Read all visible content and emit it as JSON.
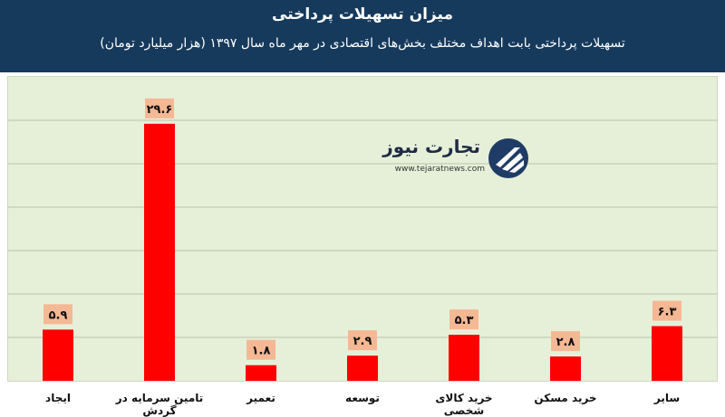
{
  "header": {
    "title": "میزان تسهیلات پرداختی",
    "subtitle": "تسهیلات پرداختی بابت اهداف مختلف بخش‌های اقتصادی در مهر ماه سال ۱۳۹۷ (هزار میلیارد تومان)"
  },
  "logo": {
    "name": "تجارت نیوز",
    "url": "www.tejaratnews.com",
    "icon": "tejaratnews-logo-icon"
  },
  "colors": {
    "header_bg": "#163a5c",
    "plot_bg": "#e6f0d8",
    "bar": "#ff0000",
    "label_bg": "#f5b894",
    "grid": "#b9c4ad"
  },
  "chart_data": {
    "type": "bar",
    "categories": [
      "ایجاد",
      "تامین سرمایه در گردش",
      "تعمیر",
      "توسعه",
      "خرید کالای شخصی",
      "خرید مسکن",
      "سایر"
    ],
    "values": [
      5.9,
      29.6,
      1.8,
      2.9,
      5.3,
      2.8,
      6.3
    ],
    "value_labels": [
      "۵.۹",
      "۲۹.۶",
      "۱.۸",
      "۲.۹",
      "۵.۳",
      "۲.۸",
      "۶.۳"
    ],
    "title": "میزان تسهیلات پرداختی",
    "subtitle": "تسهیلات پرداختی بابت اهداف مختلف بخش‌های اقتصادی در مهر ماه سال ۱۳۹۷ (هزار میلیارد تومان)",
    "xlabel": "",
    "ylabel": "",
    "ylim": [
      0,
      35
    ],
    "grid": true,
    "gridlines": [
      5,
      10,
      15,
      20,
      25,
      30
    ]
  }
}
